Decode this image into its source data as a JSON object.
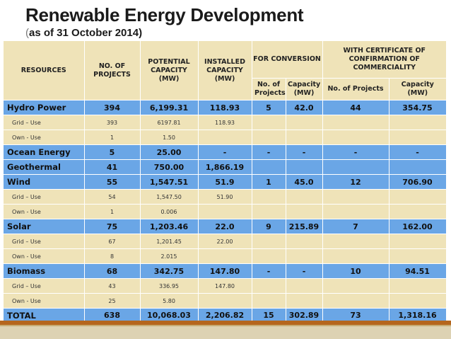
{
  "title": "Renewable Energy Development",
  "subtitle_open": "(",
  "subtitle_text": "as of 31 October 2014)",
  "headers": {
    "resources": "RESOURCES",
    "projects": "NO. OF PROJECTS",
    "potential": "POTENTIAL CAPACITY (MW)",
    "installed": "INSTALLED CAPACITY (MW)",
    "conversion": "FOR CONVERSION",
    "certificate": "WITH CERTIFICATE OF CONFIRMATION OF COMMERCIALITY",
    "conv_projects": "No. of Projects",
    "conv_capacity": "Capacity (MW)",
    "cert_projects": "No. of Projects",
    "cert_capacity": "Capacity (MW)"
  },
  "rows": [
    {
      "resource": "Hydro Power",
      "projects": "394",
      "potential": "6,199.31",
      "installed": "118.93",
      "conv_projects": "5",
      "conv_capacity": "42.0",
      "cert_projects": "44",
      "cert_capacity": "354.75"
    },
    {
      "resource": "Grid – Use",
      "projects": "393",
      "potential": "6197.81",
      "installed": "118.93",
      "conv_projects": "",
      "conv_capacity": "",
      "cert_projects": "",
      "cert_capacity": ""
    },
    {
      "resource": "Own - Use",
      "projects": "1",
      "potential": "1.50",
      "installed": "",
      "conv_projects": "",
      "conv_capacity": "",
      "cert_projects": "",
      "cert_capacity": ""
    },
    {
      "resource": "Ocean Energy",
      "projects": "5",
      "potential": "25.00",
      "installed": "-",
      "conv_projects": "-",
      "conv_capacity": "-",
      "cert_projects": "-",
      "cert_capacity": "-"
    },
    {
      "resource": "Geothermal",
      "projects": "41",
      "potential": "750.00",
      "installed": "1,866.19",
      "conv_projects": "",
      "conv_capacity": "",
      "cert_projects": "",
      "cert_capacity": ""
    },
    {
      "resource": "Wind",
      "projects": "55",
      "potential": "1,547.51",
      "installed": "51.9",
      "conv_projects": "1",
      "conv_capacity": "45.0",
      "cert_projects": "12",
      "cert_capacity": "706.90"
    },
    {
      "resource": "Grid – Use",
      "projects": "54",
      "potential": "1,547.50",
      "installed": "51.90",
      "conv_projects": "",
      "conv_capacity": "",
      "cert_projects": "",
      "cert_capacity": ""
    },
    {
      "resource": "Own - Use",
      "projects": "1",
      "potential": "0.006",
      "installed": "",
      "conv_projects": "",
      "conv_capacity": "",
      "cert_projects": "",
      "cert_capacity": ""
    },
    {
      "resource": "Solar",
      "projects": "75",
      "potential": "1,203.46",
      "installed": "22.0",
      "conv_projects": "9",
      "conv_capacity": "215.89",
      "cert_projects": "7",
      "cert_capacity": "162.00"
    },
    {
      "resource": "Grid – Use",
      "projects": "67",
      "potential": "1,201.45",
      "installed": "22.00",
      "conv_projects": "",
      "conv_capacity": "",
      "cert_projects": "",
      "cert_capacity": ""
    },
    {
      "resource": "Own - Use",
      "projects": "8",
      "potential": "2.015",
      "installed": "",
      "conv_projects": "",
      "conv_capacity": "",
      "cert_projects": "",
      "cert_capacity": ""
    },
    {
      "resource": "Biomass",
      "projects": "68",
      "potential": "342.75",
      "installed": "147.80",
      "conv_projects": "-",
      "conv_capacity": "-",
      "cert_projects": "10",
      "cert_capacity": "94.51"
    },
    {
      "resource": "Grid – Use",
      "projects": "43",
      "potential": "336.95",
      "installed": "147.80",
      "conv_projects": "",
      "conv_capacity": "",
      "cert_projects": "",
      "cert_capacity": ""
    },
    {
      "resource": "Own - Use",
      "projects": "25",
      "potential": "5.80",
      "installed": "",
      "conv_projects": "",
      "conv_capacity": "",
      "cert_projects": "",
      "cert_capacity": ""
    }
  ],
  "total": {
    "resource": "TOTAL",
    "projects": "638",
    "potential": "10,068.03",
    "installed": "2,206.82",
    "conv_projects": "15",
    "conv_capacity": "302.89",
    "cert_projects": "73",
    "cert_capacity": "1,318.16"
  },
  "colors": {
    "main_row": "#6aa6e6",
    "sub_row": "#efe3b8",
    "stripe": "#b5661e"
  }
}
